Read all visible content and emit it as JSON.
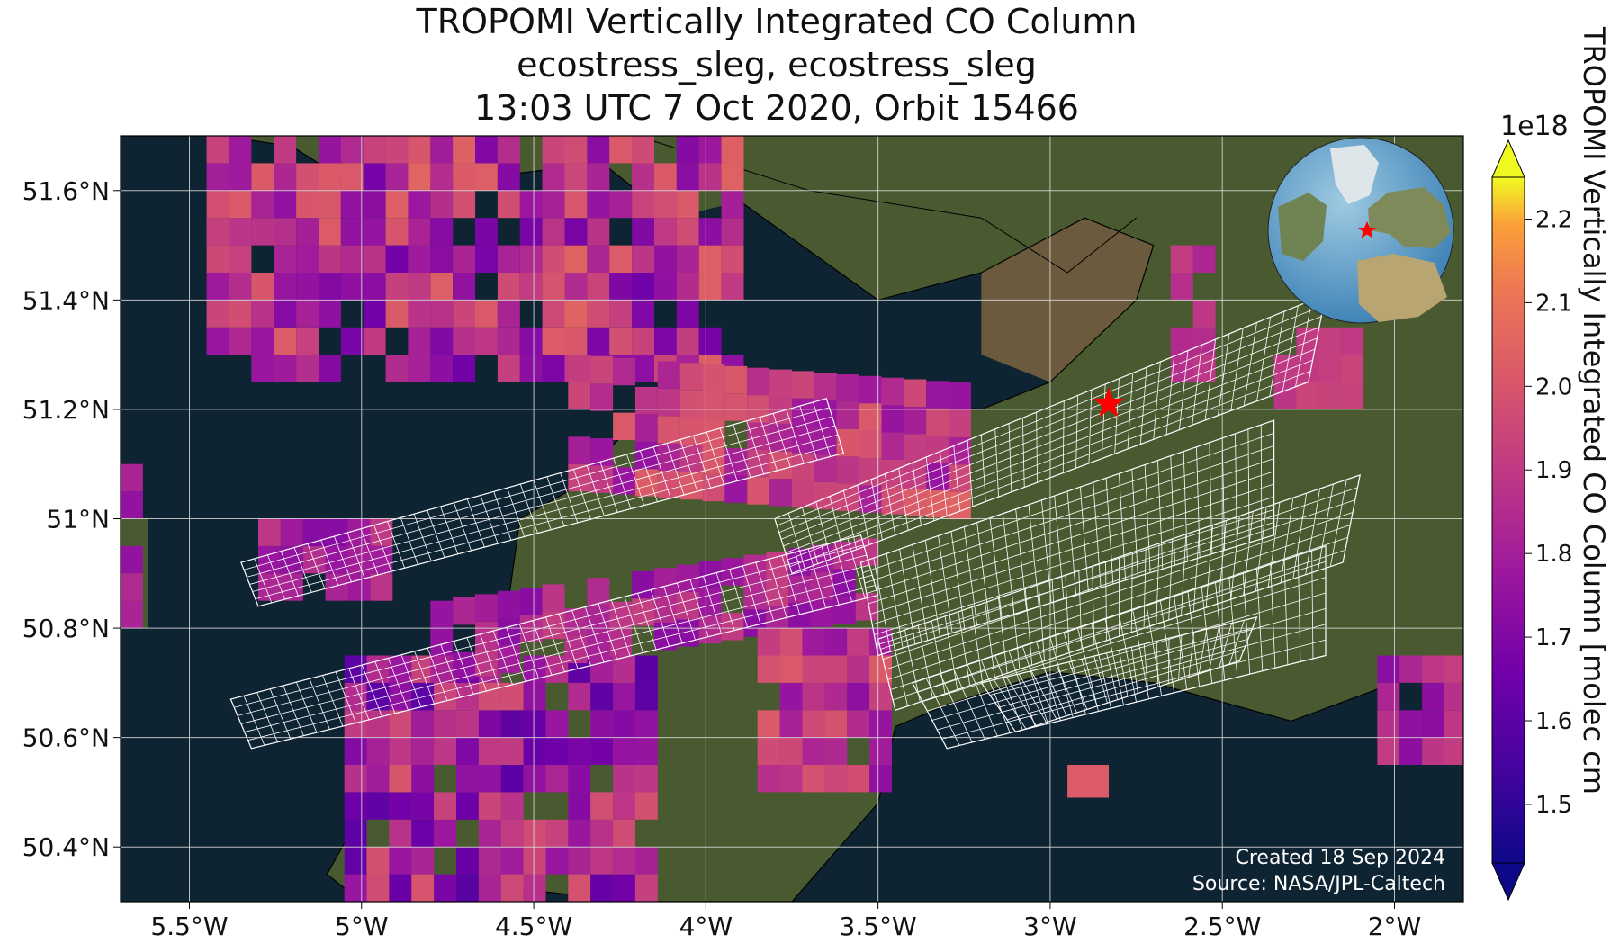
{
  "title": {
    "line1": "TROPOMI Vertically Integrated CO Column",
    "line2": "ecostress_sleg, ecostress_sleg",
    "line3": "13:03 UTC 7 Oct 2020, Orbit 15466"
  },
  "map": {
    "lon_range": [
      -5.7,
      -1.8
    ],
    "lat_range": [
      50.3,
      51.7
    ],
    "lon_ticks": [
      {
        "value": -5.5,
        "label": "5.5°W"
      },
      {
        "value": -5.0,
        "label": "5°W"
      },
      {
        "value": -4.5,
        "label": "4.5°W"
      },
      {
        "value": -4.0,
        "label": "4°W"
      },
      {
        "value": -3.5,
        "label": "3.5°W"
      },
      {
        "value": -3.0,
        "label": "3°W"
      },
      {
        "value": -2.5,
        "label": "2.5°W"
      },
      {
        "value": -2.0,
        "label": "2°W"
      }
    ],
    "lat_ticks": [
      {
        "value": 51.6,
        "label": "51.6°N"
      },
      {
        "value": 51.4,
        "label": "51.4°N"
      },
      {
        "value": 51.2,
        "label": "51.2°N"
      },
      {
        "value": 51.0,
        "label": "51°N"
      },
      {
        "value": 50.8,
        "label": "50.8°N"
      },
      {
        "value": 50.6,
        "label": "50.6°N"
      },
      {
        "value": 50.4,
        "label": "50.4°N"
      }
    ],
    "gridlines": true,
    "site_marker": {
      "lon": -2.83,
      "lat": 51.21,
      "symbol": "star",
      "color": "#ff0000"
    },
    "inset_globe": "top-right",
    "credits": {
      "line1": "Created 18 Sep 2024",
      "line2": "Source: NASA/JPL-Caltech"
    },
    "colors": {
      "sea": "#0f2433",
      "land": "#4a5a30",
      "grid": "#d9d9d9",
      "overlay": "#ffffff"
    }
  },
  "colorbar": {
    "label": "TROPOMI Vertically Integrated CO Column [molec cm",
    "exponent_label": "1e18",
    "range": [
      1.43,
      2.25
    ],
    "colormap": "plasma",
    "ticks": [
      {
        "value": 1.5,
        "label": "1.5"
      },
      {
        "value": 1.6,
        "label": "1.6"
      },
      {
        "value": 1.7,
        "label": "1.7"
      },
      {
        "value": 1.8,
        "label": "1.8"
      },
      {
        "value": 1.9,
        "label": "1.9"
      },
      {
        "value": 2.0,
        "label": "2.0"
      },
      {
        "value": 2.1,
        "label": "2.1"
      },
      {
        "value": 2.2,
        "label": "2.2"
      }
    ]
  }
}
